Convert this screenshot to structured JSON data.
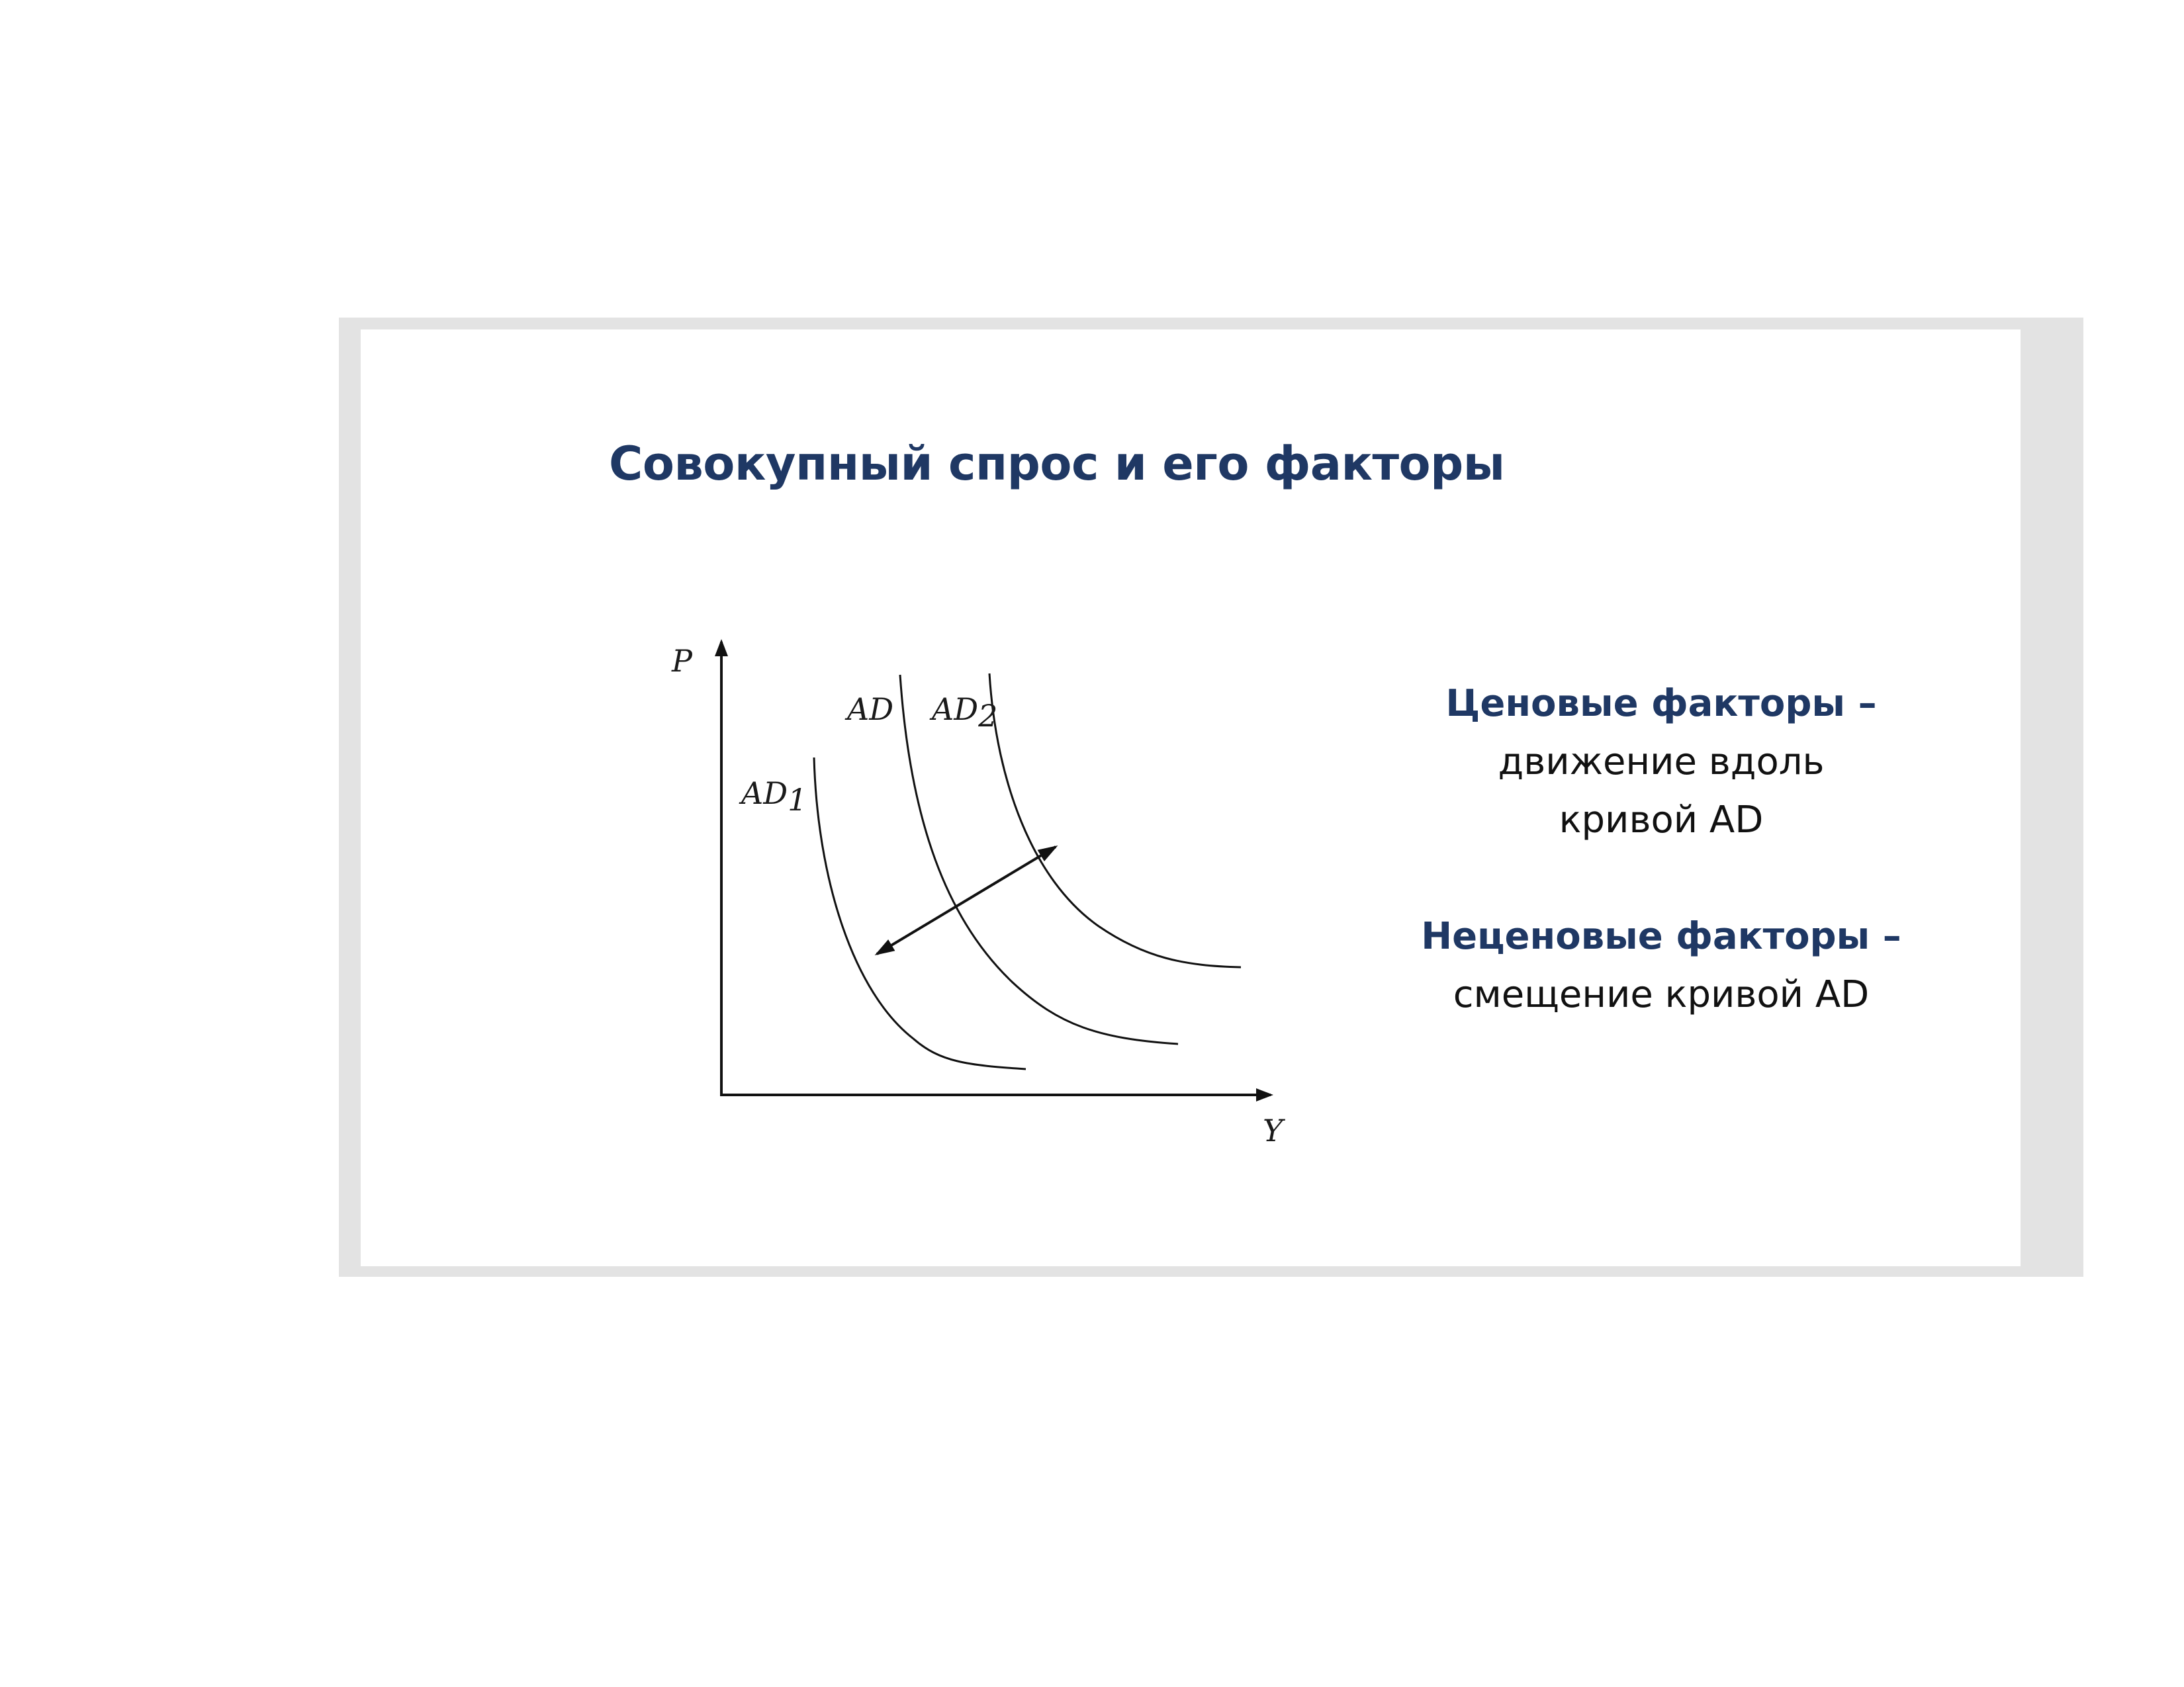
{
  "slide": {
    "title": "Совокупный спрос и его факторы"
  },
  "diagram": {
    "axis_y_label": "P",
    "axis_x_label": "Y",
    "curves": [
      {
        "name": "AD1",
        "label_main": "AD",
        "label_sub": "1"
      },
      {
        "name": "AD",
        "label_main": "AD",
        "label_sub": ""
      },
      {
        "name": "AD2",
        "label_main": "AD",
        "label_sub": "2"
      }
    ],
    "shift_arrow": "double-headed arrow between AD1 and AD2"
  },
  "factors": {
    "price": {
      "heading": "Ценовые факторы –",
      "description": "движение вдоль\nкривой AD"
    },
    "nonprice": {
      "heading": "Неценовые факторы –",
      "description": "смещение кривой AD"
    }
  },
  "colors": {
    "title": "#1f3864",
    "heading": "#1f3864",
    "text": "#111111",
    "frame": "#e3e3e3"
  }
}
